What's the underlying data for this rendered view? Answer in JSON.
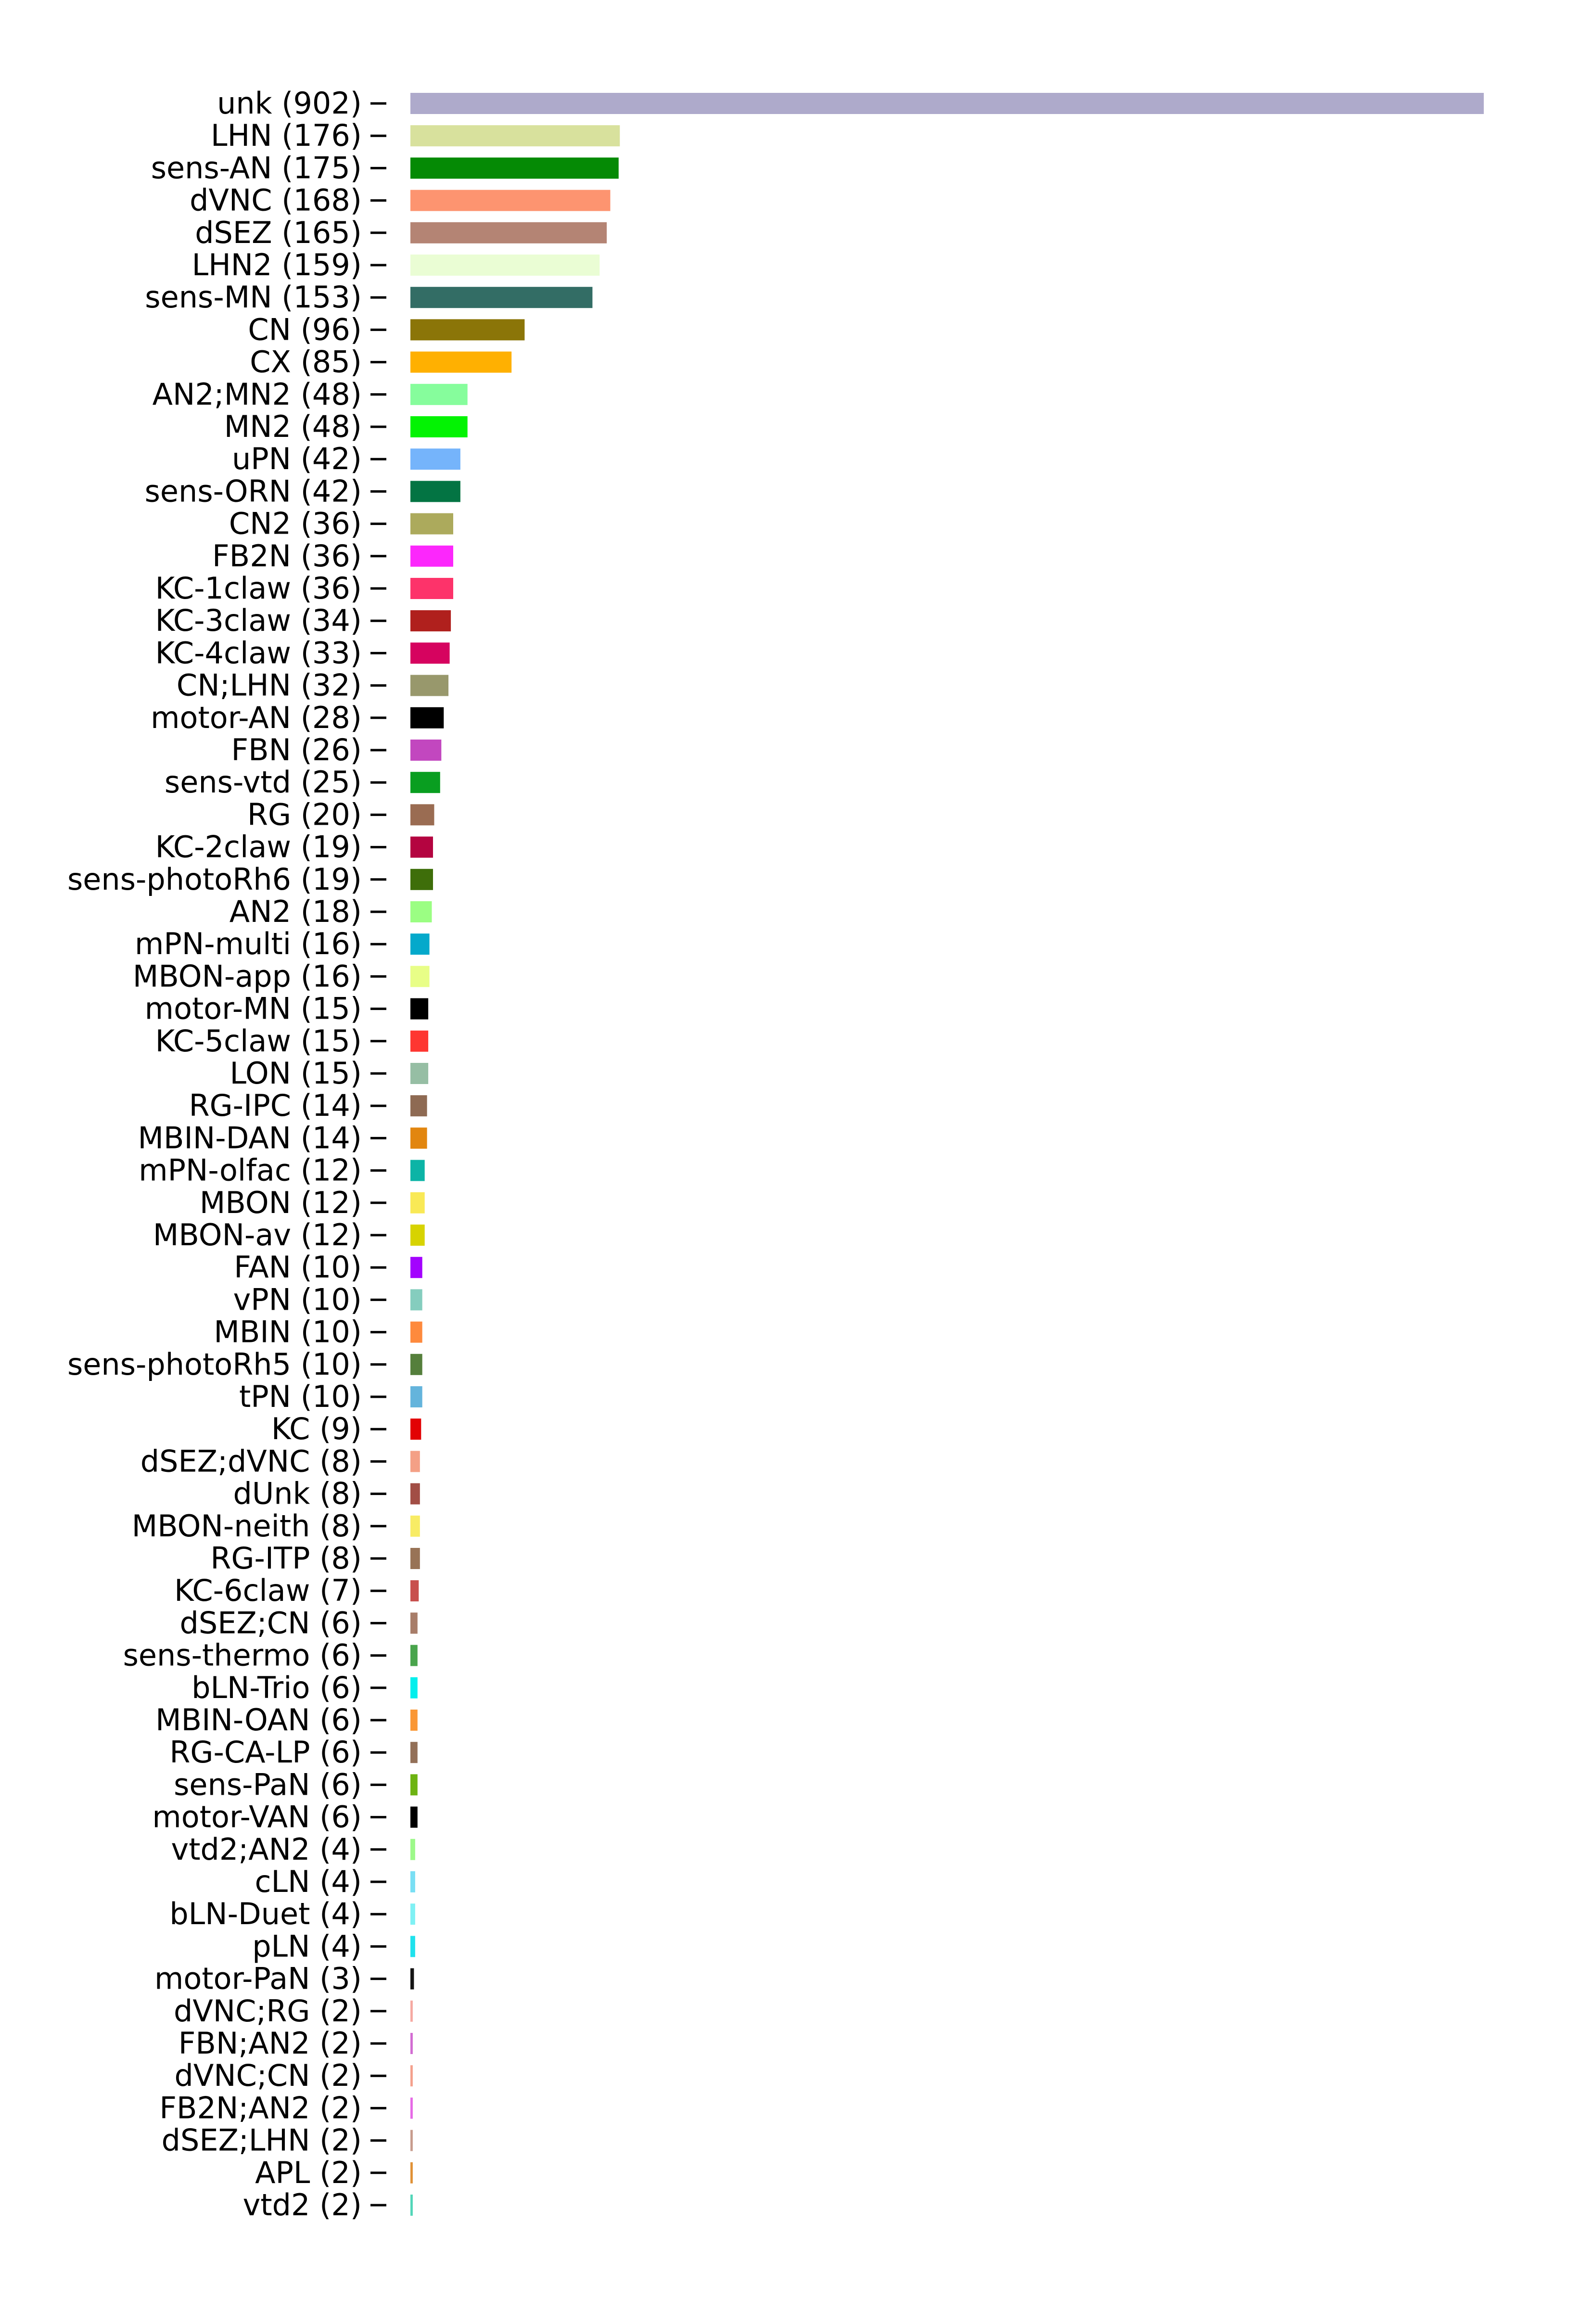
{
  "chart_data": {
    "type": "bar",
    "orientation": "horizontal",
    "grid": false,
    "xlim": [
      0,
      902
    ],
    "categories": [
      "unk (902)",
      "LHN (176)",
      "sens-AN (175)",
      "dVNC (168)",
      "dSEZ (165)",
      "LHN2 (159)",
      "sens-MN (153)",
      "CN (96)",
      "CX (85)",
      "AN2;MN2 (48)",
      "MN2 (48)",
      "uPN (42)",
      "sens-ORN (42)",
      "CN2 (36)",
      "FB2N (36)",
      "KC-1claw (36)",
      "KC-3claw (34)",
      "KC-4claw (33)",
      "CN;LHN (32)",
      "motor-AN (28)",
      "FBN (26)",
      "sens-vtd (25)",
      "RG (20)",
      "KC-2claw (19)",
      "sens-photoRh6 (19)",
      "AN2 (18)",
      "mPN-multi (16)",
      "MBON-app (16)",
      "motor-MN (15)",
      "KC-5claw (15)",
      "LON (15)",
      "RG-IPC (14)",
      "MBIN-DAN (14)",
      "mPN-olfac (12)",
      "MBON (12)",
      "MBON-av (12)",
      "FAN (10)",
      "vPN (10)",
      "MBIN (10)",
      "sens-photoRh5 (10)",
      "tPN (10)",
      "KC (9)",
      "dSEZ;dVNC (8)",
      "dUnk (8)",
      "MBON-neith (8)",
      "RG-ITP (8)",
      "KC-6claw (7)",
      "dSEZ;CN (6)",
      "sens-thermo (6)",
      "bLN-Trio (6)",
      "MBIN-OAN (6)",
      "RG-CA-LP (6)",
      "sens-PaN (6)",
      "motor-VAN (6)",
      "vtd2;AN2 (4)",
      "cLN (4)",
      "bLN-Duet (4)",
      "pLN (4)",
      "motor-PaN (3)",
      "dVNC;RG (2)",
      "FBN;AN2 (2)",
      "dVNC;CN (2)",
      "FB2N;AN2 (2)",
      "dSEZ;LHN (2)",
      "APL (2)",
      "vtd2 (2)"
    ],
    "values": [
      902,
      176,
      175,
      168,
      165,
      159,
      153,
      96,
      85,
      48,
      48,
      42,
      42,
      36,
      36,
      36,
      34,
      33,
      32,
      28,
      26,
      25,
      20,
      19,
      19,
      18,
      16,
      16,
      15,
      15,
      15,
      14,
      14,
      12,
      12,
      12,
      10,
      10,
      10,
      10,
      10,
      9,
      8,
      8,
      8,
      8,
      7,
      6,
      6,
      6,
      6,
      6,
      6,
      6,
      4,
      4,
      4,
      4,
      3,
      2,
      2,
      2,
      2,
      2,
      2,
      2
    ],
    "colors": [
      "#aeaacb",
      "#d8e19d",
      "#058a05",
      "#fd9470",
      "#b48474",
      "#eafdd4",
      "#336d65",
      "#8b7508",
      "#ffb001",
      "#86fd9c",
      "#03f303",
      "#75b4fb",
      "#037443",
      "#acaa5c",
      "#fc27fc",
      "#fd336a",
      "#b0201d",
      "#d6035f",
      "#98986c",
      "#000000",
      "#c247bf",
      "#099e20",
      "#9a6c52",
      "#b40440",
      "#3e6e0a",
      "#9bfe83",
      "#04a9cb",
      "#e8fe87",
      "#000000",
      "#fe3631",
      "#96bea4",
      "#8e6a53",
      "#e2860f",
      "#0cb4a6",
      "#f9e956",
      "#d7d301",
      "#a303fe",
      "#85cdbe",
      "#fe8a3d",
      "#557f3c",
      "#64b4dc",
      "#e20204",
      "#f4a086",
      "#a24e45",
      "#f8ec65",
      "#987356",
      "#c84f4d",
      "#a87d69",
      "#49a44c",
      "#02efed",
      "#fa9735",
      "#937058",
      "#6db312",
      "#000000",
      "#9df98a",
      "#79dff4",
      "#7ff1f4",
      "#1fe2ed",
      "#141414",
      "#f6a9a2",
      "#d26cd2",
      "#f4a18d",
      "#e66ae6",
      "#c89c8d",
      "#e09136",
      "#52d6b8"
    ]
  }
}
